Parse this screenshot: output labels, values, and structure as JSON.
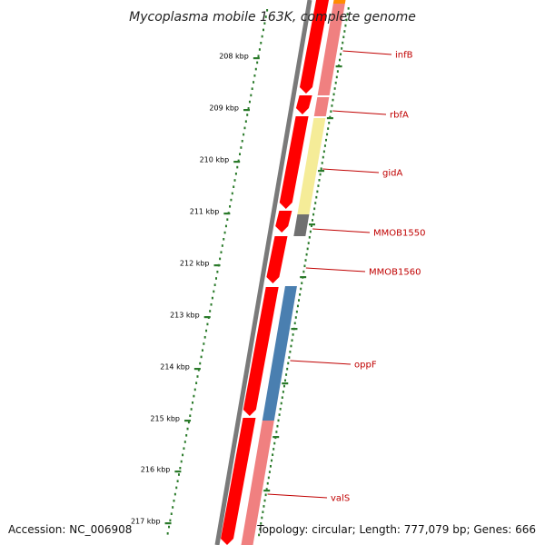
{
  "title": "Mycoplasma mobile 163K, complete genome",
  "accession_text": "Accession: NC_006908",
  "topology_text": "Topology: circular; Length: 777,079 bp; Genes: 666",
  "colors": {
    "backbone": "#7a7a7a",
    "forward_strand": "#ff0000",
    "reverse_pink": "#f08080",
    "reverse_yellow": "#f5ec98",
    "reverse_gray": "#707070",
    "reverse_blue": "#4a7fb0",
    "reverse_orange": "#ff8c00",
    "tick_green": "#2a7a2a",
    "label_red": "#c00000"
  },
  "ticks": [
    {
      "label": "208 kbp"
    },
    {
      "label": "209 kbp"
    },
    {
      "label": "210 kbp"
    },
    {
      "label": "211 kbp"
    },
    {
      "label": "212 kbp"
    },
    {
      "label": "213 kbp"
    },
    {
      "label": "214 kbp"
    },
    {
      "label": "215 kbp"
    },
    {
      "label": "216 kbp"
    },
    {
      "label": "217 kbp"
    }
  ],
  "genes": [
    {
      "name": "infB"
    },
    {
      "name": "rbfA"
    },
    {
      "name": "gidA"
    },
    {
      "name": "MMOB1550"
    },
    {
      "name": "MMOB1560"
    },
    {
      "name": "oppF"
    },
    {
      "name": "valS"
    }
  ]
}
